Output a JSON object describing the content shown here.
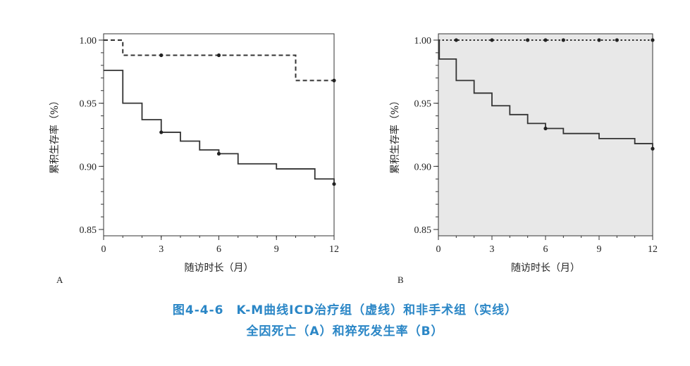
{
  "chart_data": [
    {
      "type": "line",
      "panel_label": "A",
      "xlabel": "随访时长（月）",
      "ylabel": "累积生存率（%）",
      "xlim": [
        0,
        12
      ],
      "ylim": [
        0.845,
        1.005
      ],
      "xticks": [
        "0",
        "3",
        "6",
        "9",
        "12"
      ],
      "yticks": [
        "0.85",
        "0.90",
        "0.95",
        "1.00"
      ],
      "background": "#ffffff",
      "grid": false,
      "series": [
        {
          "style": "dashed",
          "step": true,
          "x": [
            0,
            1,
            10,
            12
          ],
          "y": [
            1.0,
            0.988,
            0.968,
            0.968
          ],
          "censor_x": [
            3,
            6,
            12
          ],
          "censor_y": [
            0.988,
            0.988,
            0.968
          ]
        },
        {
          "style": "solid",
          "step": true,
          "x": [
            0,
            1,
            2,
            3,
            4,
            5,
            6,
            7,
            9,
            11,
            12
          ],
          "y": [
            0.976,
            0.95,
            0.937,
            0.927,
            0.92,
            0.913,
            0.91,
            0.902,
            0.898,
            0.89,
            0.886
          ],
          "censor_x": [
            3,
            6,
            12
          ],
          "censor_y": [
            0.927,
            0.91,
            0.886
          ]
        }
      ]
    },
    {
      "type": "line",
      "panel_label": "B",
      "xlabel": "随访时长（月）",
      "ylabel": "累积生存率（%）",
      "xlim": [
        0,
        12
      ],
      "ylim": [
        0.845,
        1.005
      ],
      "xticks": [
        "0",
        "3",
        "6",
        "9",
        "12"
      ],
      "yticks": [
        "0.85",
        "0.90",
        "0.95",
        "1.00"
      ],
      "background": "#e8e8e8",
      "grid": false,
      "series": [
        {
          "style": "dotted",
          "step": true,
          "x": [
            0,
            12
          ],
          "y": [
            1.0,
            1.0
          ],
          "censor_x": [
            1,
            3,
            5,
            6,
            7,
            9,
            10,
            12
          ],
          "censor_y": [
            1.0,
            1.0,
            1.0,
            1.0,
            1.0,
            1.0,
            1.0,
            1.0
          ]
        },
        {
          "style": "solid",
          "step": true,
          "x": [
            0,
            0.05,
            1,
            2,
            3,
            4,
            5,
            6,
            7,
            9,
            11,
            12
          ],
          "y": [
            1.0,
            0.985,
            0.968,
            0.958,
            0.948,
            0.941,
            0.934,
            0.93,
            0.926,
            0.922,
            0.918,
            0.914
          ],
          "censor_x": [
            6,
            12
          ],
          "censor_y": [
            0.93,
            0.914
          ]
        }
      ]
    }
  ],
  "caption": {
    "line1": "图4-4-6　K-M曲线ICD治疗组（虚线）和非手术组（实线）",
    "line2": "全因死亡（A）和猝死发生率（B）"
  },
  "colors": {
    "caption": "#2a86c6",
    "line": "#333333",
    "panel_b_bg": "#e8e8e8"
  }
}
